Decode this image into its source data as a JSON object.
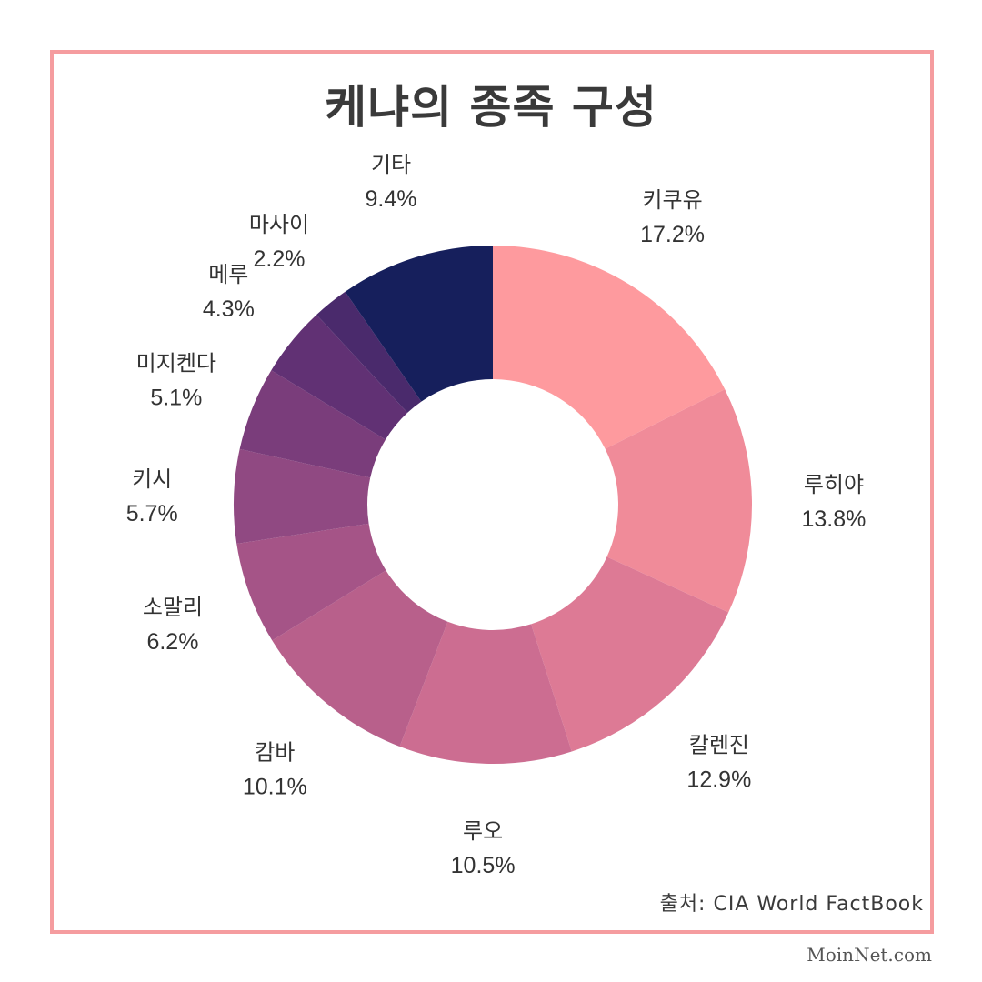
{
  "chart_data": {
    "type": "pie",
    "title": "케냐의 종족 구성",
    "unit": "%",
    "slices": [
      {
        "label": "키쿠유",
        "value": 17.2,
        "display": "17.2%",
        "color": "#fe9a9e"
      },
      {
        "label": "루히야",
        "value": 13.8,
        "display": "13.8%",
        "color": "#f08b99"
      },
      {
        "label": "칼렌진",
        "value": 12.9,
        "display": "12.9%",
        "color": "#dd7a95"
      },
      {
        "label": "루오",
        "value": 10.5,
        "display": "10.5%",
        "color": "#cc6d91"
      },
      {
        "label": "캄바",
        "value": 10.1,
        "display": "10.1%",
        "color": "#b8608b"
      },
      {
        "label": "소말리",
        "value": 6.2,
        "display": "6.2%",
        "color": "#a55487"
      },
      {
        "label": "키시",
        "value": 5.7,
        "display": "5.7%",
        "color": "#904982"
      },
      {
        "label": "미지켄다",
        "value": 5.1,
        "display": "5.1%",
        "color": "#7a3d7b"
      },
      {
        "label": "메루",
        "value": 4.3,
        "display": "4.3%",
        "color": "#613174"
      },
      {
        "label": "마사이",
        "value": 2.2,
        "display": "2.2%",
        "color": "#4a2a6c"
      },
      {
        "label": "기타",
        "value": 9.4,
        "display": "9.4%",
        "color": "#161f5c"
      }
    ],
    "source": "출처: CIA World FactBook"
  },
  "footer": {
    "credit": "MoinNet.com"
  },
  "colors": {
    "frame": "#f59c9f",
    "title": "#3a3a3a"
  }
}
